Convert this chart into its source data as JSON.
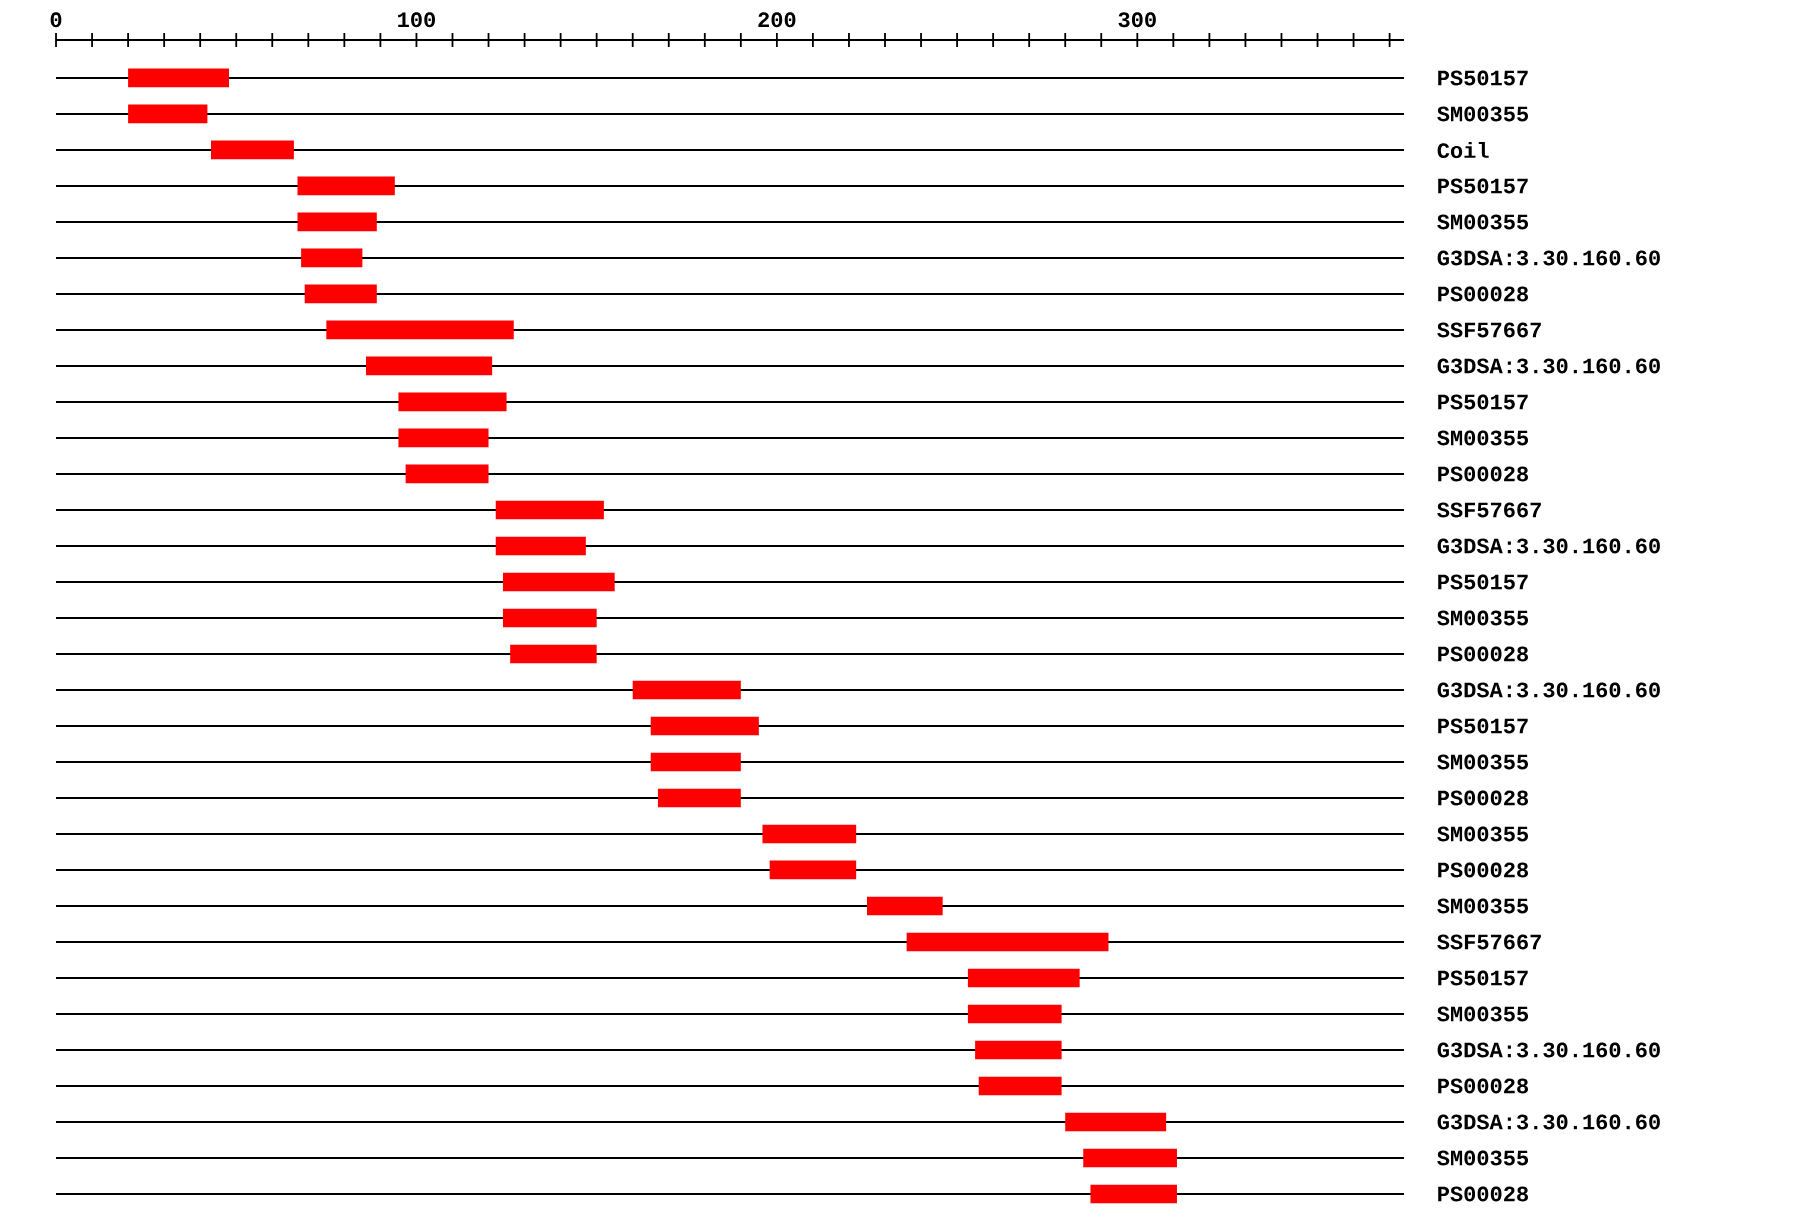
{
  "chart_data": {
    "type": "bar",
    "orientation": "horizontal",
    "color": "#ff0000",
    "grid": "y",
    "categories": [
      "PS50157",
      "SM00355",
      "Coil",
      "PS50157",
      "SM00355",
      "G3DSA:3.30.160.60",
      "PS00028",
      "SSF57667",
      "G3DSA:3.30.160.60",
      "PS50157",
      "SM00355",
      "PS00028",
      "SSF57667",
      "G3DSA:3.30.160.60",
      "PS50157",
      "SM00355",
      "PS00028",
      "G3DSA:3.30.160.60",
      "PS50157",
      "SM00355",
      "PS00028",
      "SM00355",
      "PS00028",
      "SM00355",
      "SSF57667",
      "PS50157",
      "SM00355",
      "G3DSA:3.30.160.60",
      "PS00028",
      "G3DSA:3.30.160.60",
      "SM00355",
      "PS00028"
    ],
    "base": [
      20,
      20,
      43,
      67,
      67,
      68,
      69,
      75,
      86,
      95,
      95,
      97,
      122,
      122,
      124,
      124,
      126,
      160,
      165,
      165,
      167,
      196,
      198,
      225,
      236,
      253,
      253,
      255,
      256,
      280,
      285,
      287
    ],
    "values": [
      28,
      22,
      23,
      27,
      22,
      17,
      20,
      52,
      35,
      30,
      25,
      23,
      30,
      25,
      31,
      26,
      24,
      30,
      30,
      25,
      23,
      26,
      24,
      21,
      56,
      31,
      26,
      24,
      23,
      28,
      26,
      24
    ],
    "xlim": [
      0,
      374
    ],
    "xticks": [
      0,
      {
        "value": 10,
        "label": null
      },
      {
        "value": 20,
        "label": null
      },
      {
        "value": 30,
        "label": null
      },
      {
        "value": 40,
        "label": null
      },
      {
        "value": 50,
        "label": null
      },
      {
        "value": 60,
        "label": null
      },
      {
        "value": 70,
        "label": null
      },
      {
        "value": 80,
        "label": null
      },
      {
        "value": 90,
        "label": null
      },
      100,
      {
        "value": 110,
        "label": null
      },
      {
        "value": 120,
        "label": null
      },
      {
        "value": 130,
        "label": null
      },
      {
        "value": 140,
        "label": null
      },
      {
        "value": 150,
        "label": null
      },
      {
        "value": 160,
        "label": null
      },
      {
        "value": 170,
        "label": null
      },
      {
        "value": 180,
        "label": null
      },
      {
        "value": 190,
        "label": null
      },
      200,
      {
        "value": 210,
        "label": null
      },
      {
        "value": 220,
        "label": null
      },
      {
        "value": 230,
        "label": null
      },
      {
        "value": 240,
        "label": null
      },
      {
        "value": 250,
        "label": null
      },
      {
        "value": 260,
        "label": null
      },
      {
        "value": 270,
        "label": null
      },
      {
        "value": 280,
        "label": null
      },
      {
        "value": 290,
        "label": null
      },
      300,
      {
        "value": 310,
        "label": null
      },
      {
        "value": 320,
        "label": null
      },
      {
        "value": 330,
        "label": null
      },
      {
        "value": 340,
        "label": null
      },
      {
        "value": 350,
        "label": null
      },
      {
        "value": 360,
        "label": null
      },
      {
        "value": 370,
        "label": null
      }
    ]
  }
}
